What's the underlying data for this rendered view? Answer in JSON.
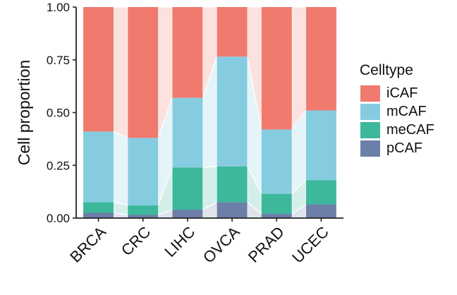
{
  "chart_data": {
    "type": "bar",
    "stacked": true,
    "categories": [
      "BRCA",
      "CRC",
      "LIHC",
      "OVCA",
      "PRAD",
      "UCEC"
    ],
    "series": [
      {
        "name": "pCAF",
        "color": "#6C7FA8",
        "values": [
          0.025,
          0.015,
          0.04,
          0.075,
          0.02,
          0.065
        ]
      },
      {
        "name": "meCAF",
        "color": "#3DB89C",
        "values": [
          0.05,
          0.045,
          0.2,
          0.17,
          0.095,
          0.115
        ]
      },
      {
        "name": "mCAF",
        "color": "#86CCE1",
        "values": [
          0.335,
          0.32,
          0.33,
          0.52,
          0.305,
          0.33
        ]
      },
      {
        "name": "iCAF",
        "color": "#EF7A6D",
        "values": [
          0.59,
          0.62,
          0.43,
          0.235,
          0.58,
          0.49
        ]
      }
    ],
    "title": "",
    "xlabel": "",
    "ylabel": "Cell proportion",
    "ylim": [
      0,
      1
    ],
    "yticks": [
      0,
      0.25,
      0.5,
      0.75,
      1
    ],
    "ytick_labels": [
      "0.00",
      "0.25",
      "0.50",
      "0.75",
      "1.00"
    ],
    "legend": {
      "title": "Celltype",
      "position": "right",
      "items": [
        "iCAF",
        "mCAF",
        "meCAF",
        "pCAF"
      ]
    }
  }
}
